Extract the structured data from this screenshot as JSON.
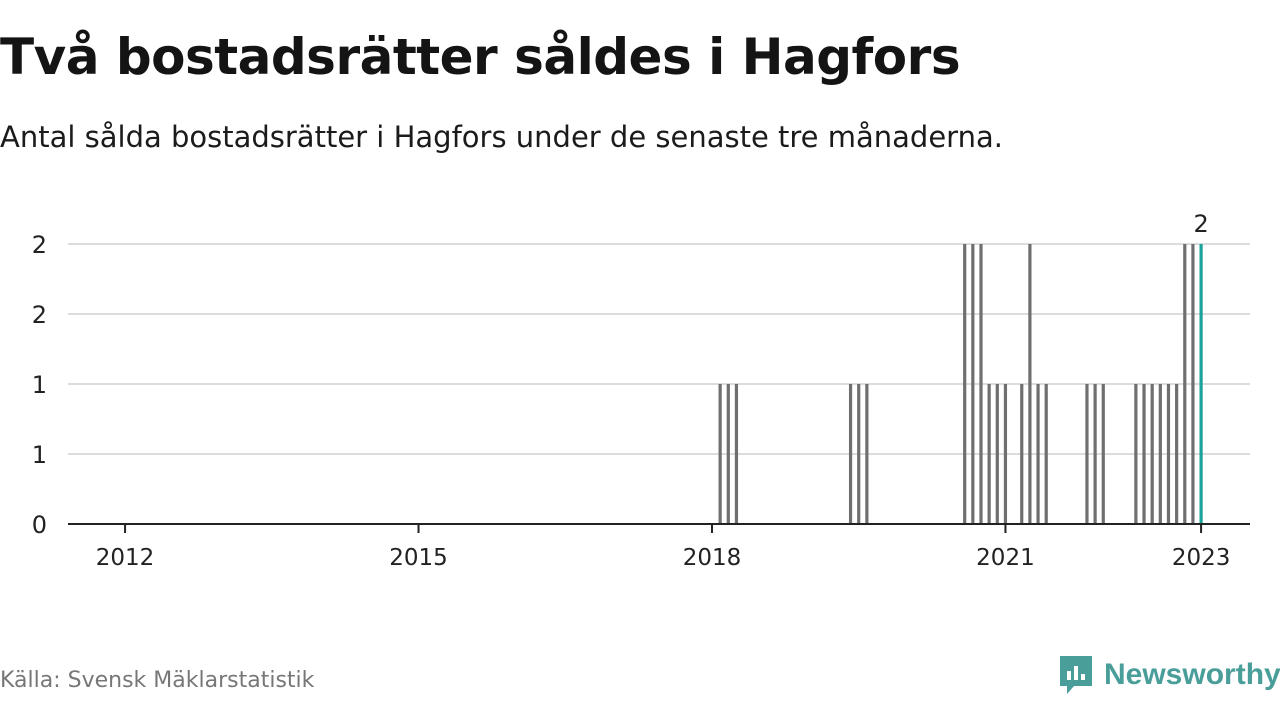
{
  "title": "Två bostadsrätter såldes i Hagfors",
  "subtitle": "Antal sålda bostadsrätter i Hagfors under de senaste tre månaderna.",
  "source": "Källa: Svensk Mäklarstatistik",
  "brand": "Newsworthy",
  "colors": {
    "bar": "#6f6f72",
    "highlight": "#1aa39a",
    "grid": "#dcdcdc",
    "axis": "#222222",
    "brand": "#4a9e9a"
  },
  "chart_data": {
    "type": "bar",
    "x_unit": "month",
    "xlim": [
      "2011-06",
      "2023-07"
    ],
    "ylim": [
      0,
      2
    ],
    "y_ticks": [
      0,
      0.5,
      1,
      1.5,
      2
    ],
    "y_tick_labels": [
      "0",
      "1",
      "1",
      "2",
      "2"
    ],
    "x_ticks": [
      "2012-01",
      "2015-01",
      "2018-01",
      "2021-01",
      "2023-01"
    ],
    "x_tick_labels": [
      "2012",
      "2015",
      "2018",
      "2021",
      "2023"
    ],
    "grid": true,
    "legend": "none",
    "highlight_label": "2",
    "series": [
      {
        "values": [
          [
            "2018-02",
            1
          ],
          [
            "2018-03",
            1
          ],
          [
            "2018-04",
            1
          ],
          [
            "2019-06",
            1
          ],
          [
            "2019-07",
            1
          ],
          [
            "2019-08",
            1
          ],
          [
            "2020-08",
            2
          ],
          [
            "2020-09",
            2
          ],
          [
            "2020-10",
            2
          ],
          [
            "2020-11",
            1
          ],
          [
            "2020-12",
            1
          ],
          [
            "2021-01",
            1
          ],
          [
            "2021-03",
            1
          ],
          [
            "2021-04",
            2
          ],
          [
            "2021-05",
            1
          ],
          [
            "2021-06",
            1
          ],
          [
            "2021-11",
            1
          ],
          [
            "2021-12",
            1
          ],
          [
            "2022-01",
            1
          ],
          [
            "2022-05",
            1
          ],
          [
            "2022-06",
            1
          ],
          [
            "2022-07",
            1
          ],
          [
            "2022-08",
            1
          ],
          [
            "2022-09",
            1
          ],
          [
            "2022-10",
            1
          ],
          [
            "2022-11",
            2
          ],
          [
            "2022-12",
            2
          ],
          [
            "2023-01",
            2
          ]
        ]
      }
    ]
  }
}
